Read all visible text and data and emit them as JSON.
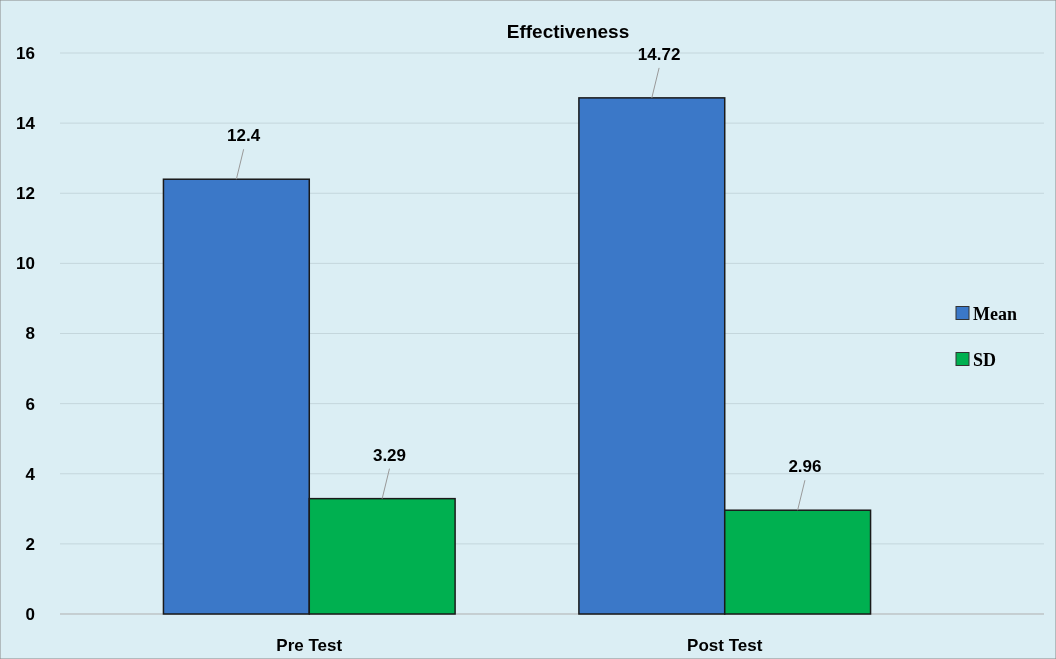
{
  "chart_data": {
    "type": "bar",
    "title": "Effectiveness",
    "categories": [
      "Pre Test",
      "Post Test"
    ],
    "series": [
      {
        "name": "Mean",
        "color": "#3b78c8",
        "values": [
          12.4,
          14.72
        ]
      },
      {
        "name": "SD",
        "color": "#00b050",
        "values": [
          3.29,
          2.96
        ]
      }
    ],
    "ylim": [
      0,
      16
    ],
    "yticks": [
      0,
      2,
      4,
      6,
      8,
      10,
      12,
      14,
      16
    ],
    "grid": "y",
    "legend": "right",
    "data_labels": true
  }
}
